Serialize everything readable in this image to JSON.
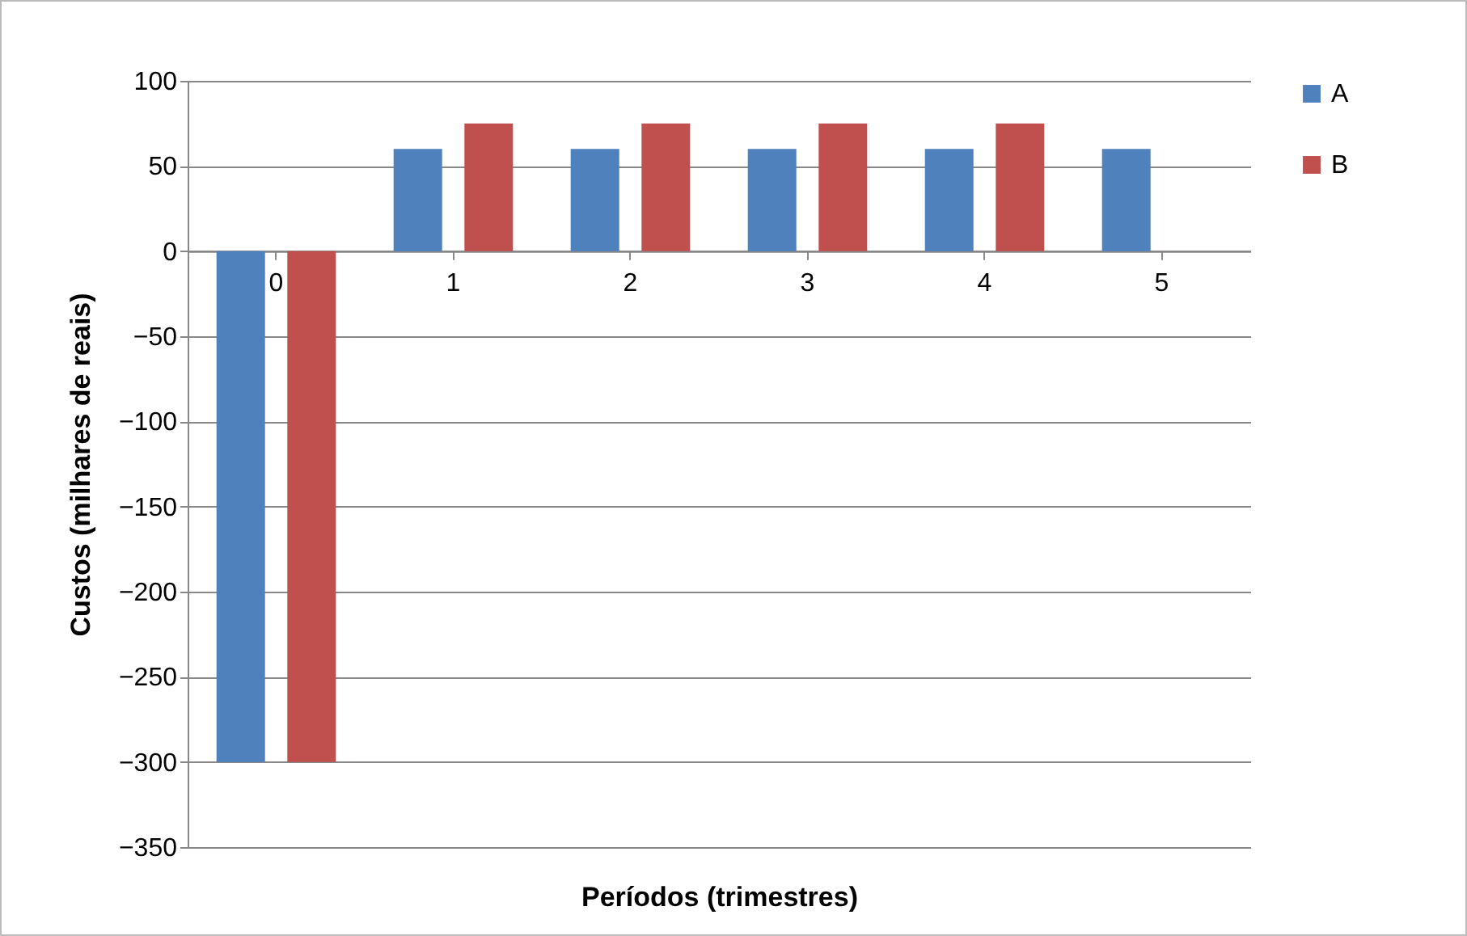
{
  "chart_data": {
    "type": "bar",
    "xlabel": "Períodos (trimestres)",
    "ylabel": "Custos (milhares de reais)",
    "categories": [
      "0",
      "1",
      "2",
      "3",
      "4",
      "5"
    ],
    "series": [
      {
        "name": "A",
        "color": "#4f81bd",
        "values": [
          -300,
          60,
          60,
          60,
          60,
          60
        ]
      },
      {
        "name": "B",
        "color": "#c0504d",
        "values": [
          -300,
          75,
          75,
          75,
          75,
          null
        ]
      }
    ],
    "ylim": [
      -350,
      100
    ],
    "yticks": [
      -350,
      -300,
      -250,
      -200,
      -150,
      -100,
      -50,
      0,
      50,
      100
    ],
    "grid": "y",
    "legend": "right"
  }
}
